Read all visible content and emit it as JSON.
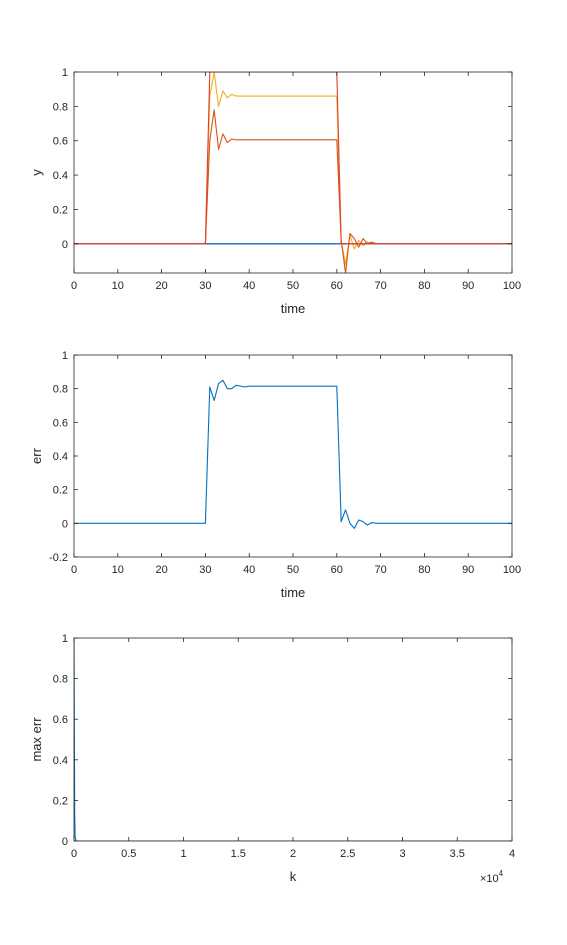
{
  "chart_data": [
    {
      "type": "line",
      "xlabel": "time",
      "ylabel": "y",
      "xlim": [
        0,
        100
      ],
      "ylim": [
        -0.17,
        1.0
      ],
      "xticks": [
        "0",
        "10",
        "20",
        "30",
        "40",
        "50",
        "60",
        "70",
        "80",
        "90",
        "100"
      ],
      "yticks": [
        "0",
        "0.2",
        "0.4",
        "0.6",
        "0.8",
        "1"
      ],
      "xtick_values": [
        0,
        10,
        20,
        30,
        40,
        50,
        60,
        70,
        80,
        90,
        100
      ],
      "ytick_values": [
        0,
        0.2,
        0.4,
        0.6,
        0.8,
        1
      ],
      "grid": false,
      "series": [
        {
          "color": "#7E2F8E",
          "points": [
            [
              0,
              0
            ],
            [
              100,
              0
            ]
          ]
        },
        {
          "color": "#EDB120",
          "points": [
            [
              0,
              0
            ],
            [
              30,
              0
            ],
            [
              31,
              0.86
            ],
            [
              32,
              1.0
            ],
            [
              33,
              0.8
            ],
            [
              34,
              0.89
            ],
            [
              35,
              0.85
            ],
            [
              36,
              0.87
            ],
            [
              37,
              0.86
            ],
            [
              38,
              0.86
            ],
            [
              60,
              0.86
            ],
            [
              61,
              0.02
            ],
            [
              62,
              -0.12
            ],
            [
              63,
              0.05
            ],
            [
              64,
              -0.03
            ],
            [
              65,
              0.02
            ],
            [
              66,
              -0.01
            ],
            [
              67,
              0.01
            ],
            [
              68,
              0
            ],
            [
              100,
              0
            ]
          ]
        },
        {
          "color": "#D95319",
          "points": [
            [
              0,
              0
            ],
            [
              30,
              0
            ],
            [
              31,
              0.6
            ],
            [
              32,
              0.78
            ],
            [
              33,
              0.55
            ],
            [
              34,
              0.64
            ],
            [
              35,
              0.59
            ],
            [
              36,
              0.61
            ],
            [
              37,
              0.605
            ],
            [
              38,
              0.605
            ],
            [
              60,
              0.605
            ],
            [
              61,
              0.02
            ],
            [
              62,
              -0.17
            ],
            [
              63,
              0.06
            ],
            [
              64,
              0.03
            ],
            [
              65,
              -0.02
            ],
            [
              66,
              0.03
            ],
            [
              67,
              0
            ],
            [
              68,
              0.01
            ],
            [
              69,
              0
            ],
            [
              100,
              0
            ]
          ]
        },
        {
          "color": "#0072BD",
          "points": [
            [
              0,
              0
            ],
            [
              100,
              0
            ]
          ]
        },
        {
          "color": "#E0402A",
          "points": [
            [
              0,
              0
            ],
            [
              30,
              0
            ],
            [
              31,
              1
            ],
            [
              60,
              1
            ],
            [
              61,
              0
            ],
            [
              100,
              0
            ]
          ]
        }
      ]
    },
    {
      "type": "line",
      "xlabel": "time",
      "ylabel": "err",
      "xlim": [
        0,
        100
      ],
      "ylim": [
        -0.2,
        1.0
      ],
      "xticks": [
        "0",
        "10",
        "20",
        "30",
        "40",
        "50",
        "60",
        "70",
        "80",
        "90",
        "100"
      ],
      "yticks": [
        "-0.2",
        "0",
        "0.2",
        "0.4",
        "0.6",
        "0.8",
        "1"
      ],
      "xtick_values": [
        0,
        10,
        20,
        30,
        40,
        50,
        60,
        70,
        80,
        90,
        100
      ],
      "ytick_values": [
        -0.2,
        0,
        0.2,
        0.4,
        0.6,
        0.8,
        1
      ],
      "grid": false,
      "series": [
        {
          "color": "#0072BD",
          "points": [
            [
              0,
              0
            ],
            [
              30,
              0
            ],
            [
              31,
              0.81
            ],
            [
              32,
              0.73
            ],
            [
              33,
              0.83
            ],
            [
              34,
              0.85
            ],
            [
              35,
              0.8
            ],
            [
              36,
              0.8
            ],
            [
              37,
              0.82
            ],
            [
              38,
              0.815
            ],
            [
              39,
              0.81
            ],
            [
              40,
              0.815
            ],
            [
              60,
              0.815
            ],
            [
              61,
              0.01
            ],
            [
              62,
              0.08
            ],
            [
              63,
              0
            ],
            [
              64,
              -0.03
            ],
            [
              65,
              0.02
            ],
            [
              66,
              0.01
            ],
            [
              67,
              -0.01
            ],
            [
              68,
              0.005
            ],
            [
              69,
              0
            ],
            [
              100,
              0
            ]
          ]
        }
      ]
    },
    {
      "type": "line",
      "xlabel": "k",
      "ylabel": "max err",
      "xlim": [
        0,
        4
      ],
      "ylim": [
        0,
        1.0
      ],
      "xticks": [
        "0",
        "0.5",
        "1",
        "1.5",
        "2",
        "2.5",
        "3",
        "3.5",
        "4"
      ],
      "yticks": [
        "0",
        "0.2",
        "0.4",
        "0.6",
        "0.8",
        "1"
      ],
      "xtick_values": [
        0,
        0.5,
        1,
        1.5,
        2,
        2.5,
        3,
        3.5,
        4
      ],
      "ytick_values": [
        0,
        0.2,
        0.4,
        0.6,
        0.8,
        1
      ],
      "x_exponent": "4",
      "grid": false,
      "series": [
        {
          "color": "#0072BD",
          "points": [
            [
              0,
              1
            ],
            [
              0.003,
              0.55
            ],
            [
              0.006,
              0.15
            ],
            [
              0.01,
              0.02
            ],
            [
              0.02,
              0
            ],
            [
              4,
              0
            ]
          ]
        }
      ]
    }
  ]
}
